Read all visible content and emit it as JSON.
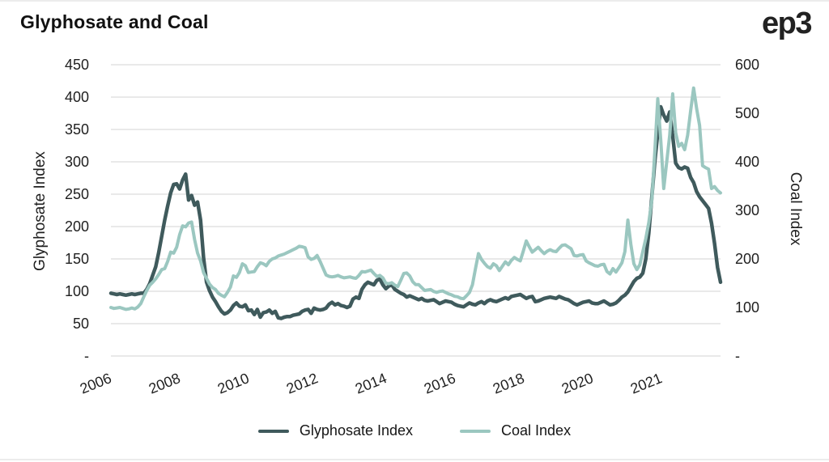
{
  "page": {
    "title": "Glyphosate and Coal",
    "logo": "ep3"
  },
  "legend": {
    "items": [
      "Glyphosate Index",
      "Coal Index"
    ]
  },
  "chart_data": {
    "type": "line",
    "title": "Glyphosate and Coal",
    "grid": true,
    "legend_position": "bottom",
    "x_tick_labels": [
      "2006",
      "2008",
      "2010",
      "2012",
      "2014",
      "2016",
      "2018",
      "2020",
      "2021"
    ],
    "left_axis": {
      "label": "Glyphosate Index",
      "min": 0,
      "max": 450,
      "tick_step": 50,
      "tick_labels": [
        "-",
        "50",
        "100",
        "150",
        "200",
        "250",
        "300",
        "350",
        "400",
        "450"
      ]
    },
    "right_axis": {
      "label": "Coal Index",
      "min": 0,
      "max": 600,
      "tick_step": 100,
      "tick_labels": [
        "-",
        "100",
        "200",
        "300",
        "400",
        "500",
        "600"
      ]
    },
    "colors": {
      "glyphosate": "#3f5a5c",
      "coal": "#9bc7c0",
      "grid": "#e2e2e2",
      "text": "#1f1f1f"
    },
    "series": [
      {
        "name": "Glyphosate Index",
        "axis": "left",
        "color": "#3f5a5c",
        "values": [
          97,
          96,
          95,
          96,
          95,
          94,
          95,
          96,
          95,
          96,
          97,
          97,
          103,
          112,
          125,
          138,
          160,
          185,
          210,
          232,
          252,
          265,
          266,
          258,
          272,
          281,
          241,
          248,
          233,
          238,
          210,
          152,
          114,
          101,
          91,
          84,
          76,
          69,
          65,
          67,
          71,
          78,
          82,
          77,
          76,
          79,
          70,
          71,
          64,
          72,
          60,
          67,
          68,
          71,
          66,
          69,
          59,
          58,
          60,
          61,
          61,
          63,
          64,
          65,
          69,
          71,
          72,
          66,
          74,
          72,
          71,
          72,
          74,
          80,
          83,
          79,
          81,
          78,
          77,
          75,
          77,
          88,
          91,
          89,
          103,
          110,
          114,
          112,
          110,
          117,
          119,
          110,
          104,
          108,
          110,
          103,
          100,
          97,
          95,
          91,
          93,
          91,
          89,
          87,
          89,
          86,
          85,
          86,
          87,
          84,
          81,
          83,
          85,
          84,
          83,
          80,
          78,
          77,
          76,
          79,
          82,
          80,
          79,
          82,
          84,
          81,
          85,
          87,
          85,
          84,
          86,
          88,
          90,
          88,
          92,
          93,
          94,
          95,
          92,
          89,
          91,
          92,
          84,
          85,
          87,
          89,
          90,
          91,
          90,
          89,
          92,
          90,
          88,
          87,
          84,
          81,
          79,
          81,
          83,
          84,
          85,
          82,
          81,
          81,
          83,
          85,
          82,
          79,
          80,
          82,
          86,
          91,
          94,
          99,
          107,
          115,
          120,
          122,
          128,
          150,
          190,
          245,
          300,
          345,
          385,
          372,
          363,
          377,
          340,
          298,
          291,
          289,
          292,
          290,
          276,
          268,
          254,
          246,
          240,
          234,
          228,
          205,
          174,
          137,
          114
        ]
      },
      {
        "name": "Coal Index",
        "axis": "right",
        "color": "#9bc7c0",
        "values": [
          100,
          98,
          99,
          100,
          98,
          96,
          97,
          99,
          97,
          101,
          108,
          122,
          135,
          146,
          152,
          159,
          168,
          178,
          180,
          195,
          214,
          212,
          224,
          250,
          268,
          266,
          274,
          276,
          240,
          212,
          196,
          172,
          160,
          148,
          141,
          137,
          129,
          125,
          122,
          131,
          142,
          165,
          162,
          172,
          190,
          186,
          172,
          173,
          174,
          184,
          192,
          190,
          186,
          195,
          200,
          202,
          206,
          208,
          210,
          213,
          216,
          219,
          222,
          226,
          225,
          223,
          204,
          199,
          201,
          207,
          195,
          181,
          167,
          164,
          163,
          164,
          166,
          163,
          161,
          162,
          163,
          161,
          160,
          166,
          174,
          173,
          175,
          177,
          170,
          164,
          166,
          161,
          150,
          149,
          151,
          146,
          143,
          156,
          170,
          171,
          165,
          153,
          147,
          147,
          141,
          135,
          136,
          137,
          133,
          131,
          133,
          134,
          131,
          128,
          126,
          123,
          122,
          119,
          118,
          124,
          131,
          147,
          180,
          211,
          199,
          191,
          184,
          181,
          190,
          186,
          176,
          185,
          194,
          188,
          197,
          203,
          199,
          196,
          216,
          237,
          225,
          214,
          219,
          224,
          217,
          211,
          216,
          219,
          216,
          215,
          222,
          228,
          229,
          225,
          221,
          207,
          206,
          208,
          209,
          196,
          192,
          189,
          186,
          185,
          188,
          189,
          174,
          169,
          180,
          173,
          182,
          192,
          215,
          280,
          230,
          190,
          178,
          188,
          215,
          242,
          275,
          320,
          420,
          530,
          445,
          345,
          400,
          455,
          540,
          460,
          432,
          438,
          425,
          455,
          505,
          552,
          510,
          475,
          392,
          388,
          385,
          345,
          349,
          341,
          336
        ]
      }
    ]
  }
}
